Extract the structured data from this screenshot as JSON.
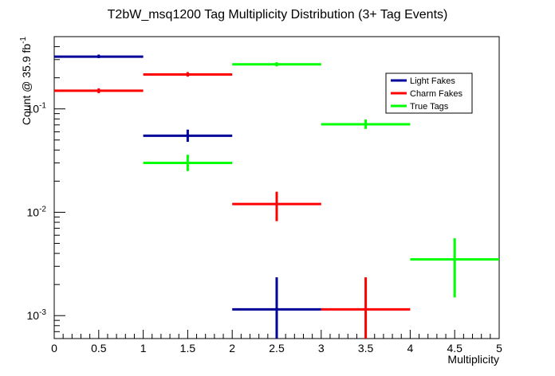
{
  "chart_data": {
    "type": "scatter",
    "style": "error-bar histogram markers (ROOT style)",
    "title": "T2bW_msq1200 Tag Multiplicity Distribution (3+ Tag Events)",
    "xlabel": "Multiplicity",
    "ylabel": "Count @ 35.9 fb",
    "ylabel_superscript": "-1",
    "xlim": [
      0,
      5
    ],
    "ylim": [
      0.0006,
      0.5
    ],
    "yscale": "log",
    "x_ticks": [
      "0",
      "0.5",
      "1",
      "1.5",
      "2",
      "2.5",
      "3",
      "3.5",
      "4",
      "4.5",
      "5"
    ],
    "y_ticks": [
      {
        "base": "10",
        "exp": "-3",
        "value": 0.001
      },
      {
        "base": "10",
        "exp": "-2",
        "value": 0.01
      },
      {
        "base": "10",
        "exp": "-1",
        "value": 0.1
      }
    ],
    "legend_position": "top-right",
    "series": [
      {
        "name": "Light Fakes",
        "color": "#000099",
        "points": [
          {
            "x": 0.5,
            "xerr": 0.5,
            "y": 0.32,
            "ylo": 0.31,
            "yhi": 0.335
          },
          {
            "x": 1.5,
            "xerr": 0.5,
            "y": 0.055,
            "ylo": 0.048,
            "yhi": 0.063
          },
          {
            "x": 2.5,
            "xerr": 0.5,
            "y": 0.00115,
            "ylo": 0.0005,
            "yhi": 0.00235
          }
        ]
      },
      {
        "name": "Charm Fakes",
        "color": "#ff0000",
        "points": [
          {
            "x": 0.5,
            "xerr": 0.5,
            "y": 0.15,
            "ylo": 0.142,
            "yhi": 0.158
          },
          {
            "x": 1.5,
            "xerr": 0.5,
            "y": 0.215,
            "ylo": 0.205,
            "yhi": 0.227
          },
          {
            "x": 2.5,
            "xerr": 0.5,
            "y": 0.012,
            "ylo": 0.0082,
            "yhi": 0.0158
          },
          {
            "x": 3.5,
            "xerr": 0.5,
            "y": 0.00115,
            "ylo": 0.0005,
            "yhi": 0.00235
          }
        ]
      },
      {
        "name": "True Tags",
        "color": "#00ff00",
        "points": [
          {
            "x": 1.5,
            "xerr": 0.5,
            "y": 0.03,
            "ylo": 0.025,
            "yhi": 0.036
          },
          {
            "x": 2.5,
            "xerr": 0.5,
            "y": 0.27,
            "ylo": 0.258,
            "yhi": 0.283
          },
          {
            "x": 3.5,
            "xerr": 0.5,
            "y": 0.071,
            "ylo": 0.064,
            "yhi": 0.079
          },
          {
            "x": 4.5,
            "xerr": 0.5,
            "y": 0.0035,
            "ylo": 0.0015,
            "yhi": 0.0056
          }
        ]
      }
    ]
  }
}
